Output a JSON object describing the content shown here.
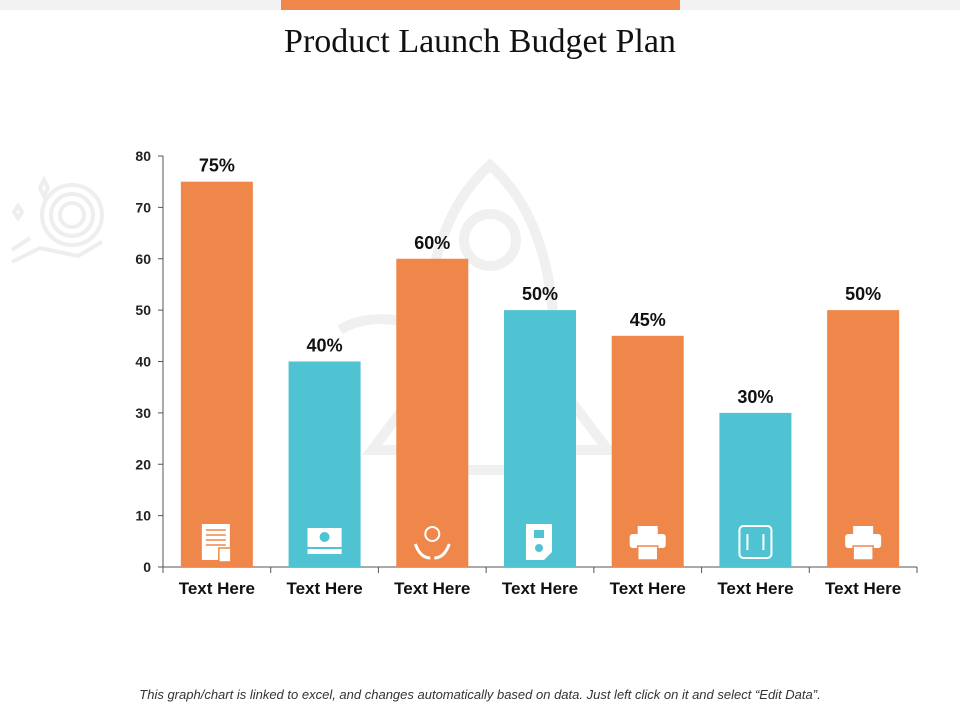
{
  "header": {
    "title": "Product Launch Budget Plan"
  },
  "colors": {
    "orange": "#f0874a",
    "teal": "#4fc3d1",
    "axis": "#555555",
    "watermark": "#eeeeee"
  },
  "footer": {
    "note": "This graph/chart is linked to excel, and changes automatically based on data. Just left click on it and select “Edit Data”."
  },
  "chart_data": {
    "type": "bar",
    "title": "",
    "xlabel": "",
    "ylabel": "",
    "ylim": [
      0,
      80
    ],
    "yticks": [
      0,
      10,
      20,
      30,
      40,
      50,
      60,
      70,
      80
    ],
    "grid": false,
    "categories": [
      "Text Here",
      "Text Here",
      "Text Here",
      "Text Here",
      "Text Here",
      "Text Here",
      "Text Here"
    ],
    "values": [
      75,
      40,
      60,
      50,
      45,
      30,
      50
    ],
    "data_labels": [
      "75%",
      "40%",
      "60%",
      "50%",
      "45%",
      "30%",
      "50%"
    ],
    "bar_colors": [
      "#f0874a",
      "#4fc3d1",
      "#f0874a",
      "#4fc3d1",
      "#f0874a",
      "#4fc3d1",
      "#f0874a"
    ],
    "bar_icons": [
      "document-calculator-icon",
      "money-stack-icon",
      "idea-hands-icon",
      "bank-document-icon",
      "printer-dollar-icon",
      "exchange-dollar-icon",
      "printer-icon"
    ]
  }
}
